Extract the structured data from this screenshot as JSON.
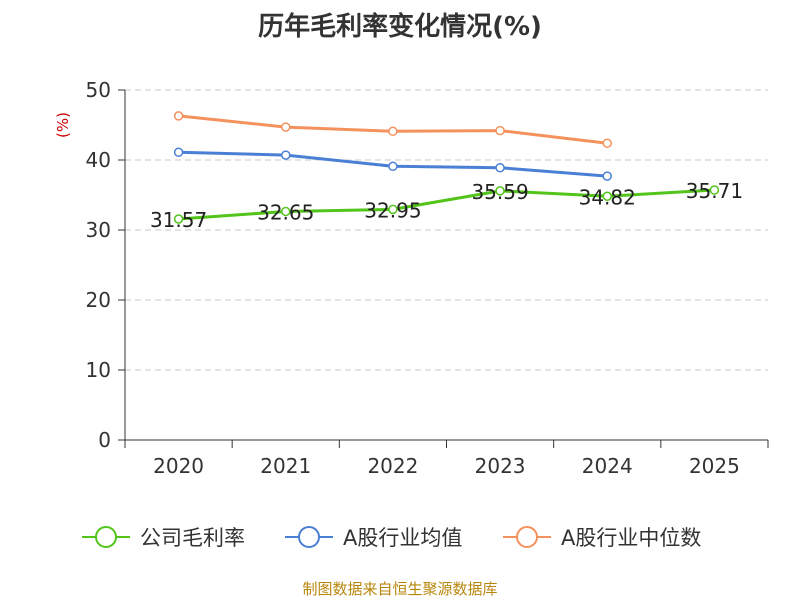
{
  "chart_data": {
    "type": "line",
    "title": "历年毛利率变化情况(%)",
    "ylabel": "(%)",
    "xlabel": "",
    "categories": [
      "2020",
      "2021",
      "2022",
      "2023",
      "2024",
      "2025"
    ],
    "ylim": [
      0,
      50
    ],
    "yticks": [
      0,
      10,
      20,
      30,
      40,
      50
    ],
    "grid": true,
    "legend_position": "bottom",
    "series": [
      {
        "name": "公司毛利率",
        "color": "#52c41a",
        "values": [
          31.57,
          32.65,
          32.95,
          35.59,
          34.82,
          35.71
        ],
        "labels": [
          "31.57",
          "32.65",
          "32.95",
          "35.59",
          "34.82",
          "35.71"
        ]
      },
      {
        "name": "A股行业均值",
        "color": "#4a7fd6",
        "values": [
          41.1,
          40.7,
          39.1,
          38.9,
          37.7,
          null
        ]
      },
      {
        "name": "A股行业中位数",
        "color": "#f4925e",
        "values": [
          46.3,
          44.7,
          44.1,
          44.2,
          42.4,
          null
        ]
      }
    ]
  },
  "footer": {
    "source": "制图数据来自恒生聚源数据库"
  }
}
